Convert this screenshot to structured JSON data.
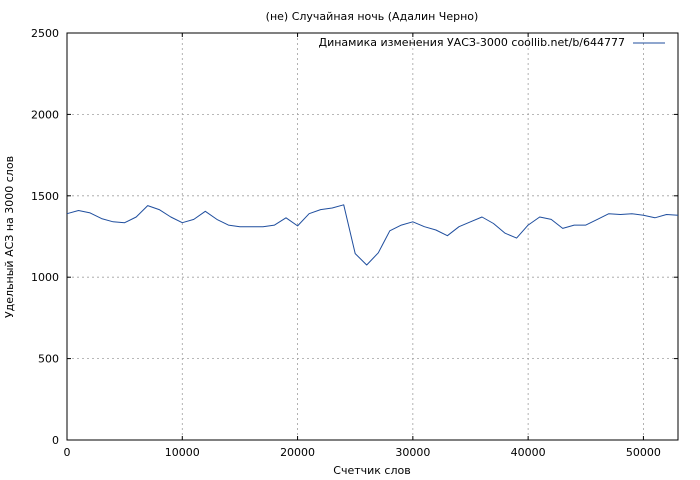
{
  "chart_data": {
    "type": "line",
    "title": "(не) Случайная ночь (Адалин Черно)",
    "xlabel": "Счетчик слов",
    "ylabel": "Удельный АСЗ на 3000 слов",
    "xlim": [
      0,
      53000
    ],
    "ylim": [
      0,
      2500
    ],
    "xticks": [
      0,
      10000,
      20000,
      30000,
      40000,
      50000
    ],
    "yticks": [
      0,
      500,
      1000,
      1500,
      2000,
      2500
    ],
    "grid": true,
    "legend_position": "top-right",
    "series": [
      {
        "name": "Динамика изменения УАСЗ-3000 coollib.net/b/644777",
        "color": "#1f4e9e",
        "x": [
          0,
          1000,
          2000,
          3000,
          4000,
          5000,
          6000,
          7000,
          8000,
          9000,
          10000,
          11000,
          12000,
          13000,
          14000,
          15000,
          16000,
          17000,
          18000,
          19000,
          20000,
          21000,
          22000,
          23000,
          24000,
          25000,
          26000,
          27000,
          28000,
          29000,
          30000,
          31000,
          32000,
          33000,
          34000,
          35000,
          36000,
          37000,
          38000,
          39000,
          40000,
          41000,
          42000,
          43000,
          44000,
          45000,
          46000,
          47000,
          48000,
          49000,
          50000,
          51000,
          52000,
          53000
        ],
        "y": [
          1390,
          1410,
          1395,
          1360,
          1340,
          1335,
          1370,
          1440,
          1415,
          1370,
          1335,
          1355,
          1405,
          1355,
          1320,
          1310,
          1310,
          1310,
          1320,
          1365,
          1315,
          1390,
          1415,
          1425,
          1445,
          1145,
          1075,
          1150,
          1285,
          1320,
          1340,
          1310,
          1290,
          1255,
          1310,
          1340,
          1370,
          1330,
          1270,
          1240,
          1320,
          1370,
          1355,
          1300,
          1320,
          1320,
          1355,
          1390,
          1385,
          1390,
          1380,
          1365,
          1385,
          1380
        ]
      }
    ]
  }
}
